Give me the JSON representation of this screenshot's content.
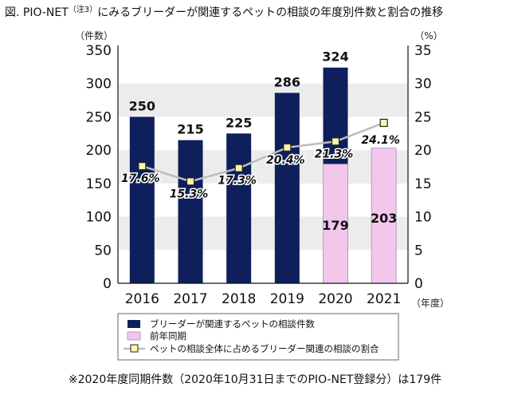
{
  "figure": {
    "title_prefix": "図.  PIO-NET",
    "title_superscript": "（注3）",
    "title_main": "にみるブリーダーが関連するペットの相談の年度別件数と割合の推移",
    "footnote": "※2020年度同期件数（2020年10月31日までのPIO-NET登録分）は179件"
  },
  "chart_data": {
    "type": "bar",
    "categories": [
      "2016",
      "2017",
      "2018",
      "2019",
      "2020",
      "2021"
    ],
    "series": [
      {
        "name": "ブリーダーが関連するペットの相談件数",
        "kind": "bar",
        "axis": "left",
        "color": "#0f1f5c",
        "values": [
          250,
          215,
          225,
          286,
          324,
          null
        ],
        "labels": [
          "250",
          "215",
          "225",
          "286",
          "324",
          ""
        ]
      },
      {
        "name": "前年同期",
        "kind": "bar",
        "axis": "left",
        "color": "#f3c6ec",
        "values": [
          null,
          null,
          null,
          null,
          179,
          203
        ],
        "labels": [
          "",
          "",
          "",
          "",
          "179",
          "203"
        ]
      },
      {
        "name": "ペットの相談全体に占めるブリーダー関連の相談の割合",
        "kind": "line",
        "axis": "right",
        "color": "#bdbdbd",
        "marker_color": "#fff6a8",
        "values": [
          17.6,
          15.3,
          17.3,
          20.4,
          21.3,
          24.1
        ],
        "labels": [
          "17.6%",
          "15.3%",
          "17.3%",
          "20.4%",
          "21.3%",
          "24.1%"
        ]
      }
    ],
    "y_left": {
      "unit_label": "（件数）",
      "ylim": [
        0,
        350
      ],
      "ticks": [
        "0",
        "50",
        "100",
        "150",
        "200",
        "250",
        "300",
        "350"
      ]
    },
    "y_right": {
      "unit_label": "（%）",
      "ylim": [
        0,
        35
      ],
      "ticks": [
        "0",
        "5",
        "10",
        "15",
        "20",
        "25",
        "30",
        "35"
      ]
    },
    "x_unit_label": "（年度）",
    "grid": "alternating horizontal bands",
    "legend_position": "bottom"
  }
}
